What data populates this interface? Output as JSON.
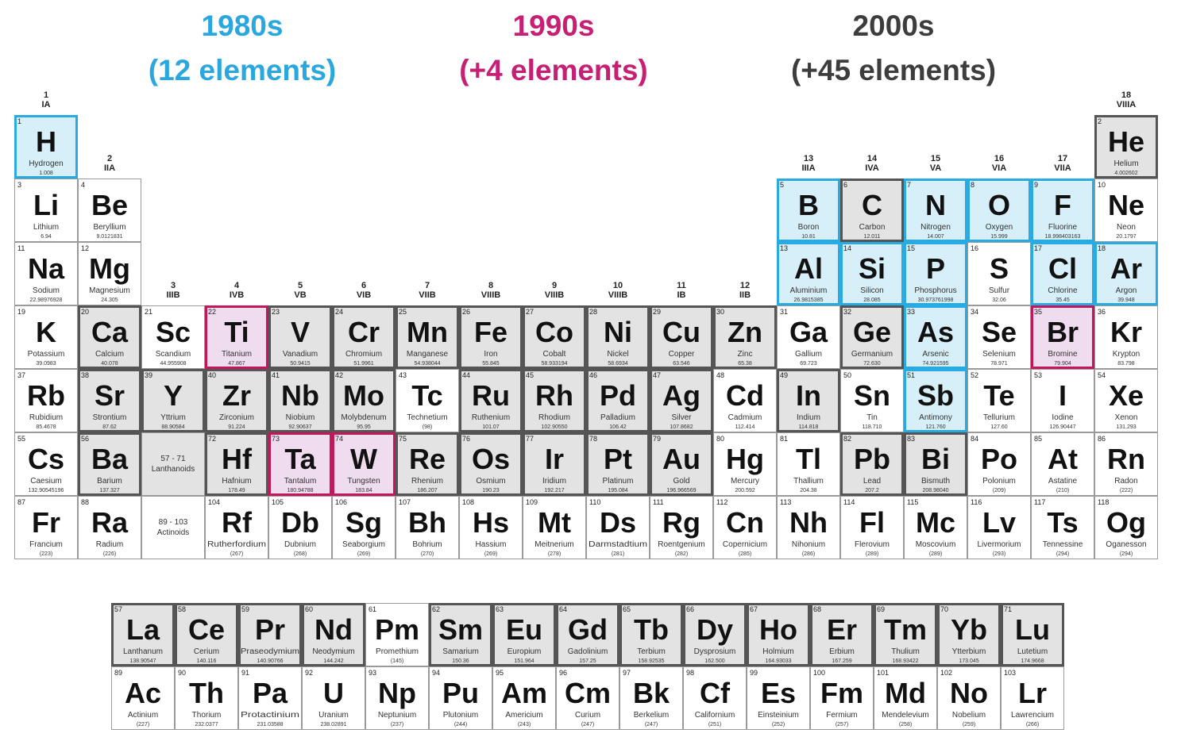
{
  "eras": [
    {
      "title": "1980s",
      "count": "(12 elements)",
      "color": "#29abe2",
      "fill": "#d6eff9",
      "text": "#2aa7df"
    },
    {
      "title": "1990s",
      "count": "(+4 elements)",
      "color": "#c2185b",
      "fill": "#efdcef",
      "text": "#c71f74"
    },
    {
      "title": "2000s",
      "count": "(+45 elements)",
      "color": "#555555",
      "fill": "#e3e3e3",
      "text": "#3d3d3d"
    }
  ],
  "groups": [
    {
      "number": 1,
      "roman": "IA"
    },
    {
      "number": 2,
      "roman": "IIA"
    },
    {
      "number": 3,
      "roman": "IIIB"
    },
    {
      "number": 4,
      "roman": "IVB"
    },
    {
      "number": 5,
      "roman": "VB"
    },
    {
      "number": 6,
      "roman": "VIB"
    },
    {
      "number": 7,
      "roman": "VIIB"
    },
    {
      "number": 8,
      "roman": "VIIIB"
    },
    {
      "number": 9,
      "roman": "VIIIB"
    },
    {
      "number": 10,
      "roman": "VIIIB"
    },
    {
      "number": 11,
      "roman": "IB"
    },
    {
      "number": 12,
      "roman": "IIB"
    },
    {
      "number": 13,
      "roman": "IIIA"
    },
    {
      "number": 14,
      "roman": "IVA"
    },
    {
      "number": 15,
      "roman": "VA"
    },
    {
      "number": 16,
      "roman": "VIA"
    },
    {
      "number": 17,
      "roman": "VIIA"
    },
    {
      "number": 18,
      "roman": "VIIIA"
    }
  ],
  "placeholders": [
    {
      "range": "57 - 71",
      "label": "Lanthanoids",
      "era": 2
    },
    {
      "range": "89 - 103",
      "label": "Actinoids"
    }
  ],
  "elements": [
    {
      "z": 1,
      "sym": "H",
      "name": "Hydrogen",
      "mass": "1.008",
      "era": 0
    },
    {
      "z": 2,
      "sym": "He",
      "name": "Helium",
      "mass": "4.002602",
      "era": 2
    },
    {
      "z": 3,
      "sym": "Li",
      "name": "Lithium",
      "mass": "6.94"
    },
    {
      "z": 4,
      "sym": "Be",
      "name": "Beryllium",
      "mass": "9.0121831"
    },
    {
      "z": 5,
      "sym": "B",
      "name": "Boron",
      "mass": "10.81",
      "era": 0
    },
    {
      "z": 6,
      "sym": "C",
      "name": "Carbon",
      "mass": "12.011",
      "era": 2
    },
    {
      "z": 7,
      "sym": "N",
      "name": "Nitrogen",
      "mass": "14.007",
      "era": 0
    },
    {
      "z": 8,
      "sym": "O",
      "name": "Oxygen",
      "mass": "15.999",
      "era": 0
    },
    {
      "z": 9,
      "sym": "F",
      "name": "Fluorine",
      "mass": "18.998403163",
      "era": 0
    },
    {
      "z": 10,
      "sym": "Ne",
      "name": "Neon",
      "mass": "20.1797"
    },
    {
      "z": 11,
      "sym": "Na",
      "name": "Sodium",
      "mass": "22.98976928"
    },
    {
      "z": 12,
      "sym": "Mg",
      "name": "Magnesium",
      "mass": "24.305"
    },
    {
      "z": 13,
      "sym": "Al",
      "name": "Aluminium",
      "mass": "26.9815385",
      "era": 0
    },
    {
      "z": 14,
      "sym": "Si",
      "name": "Silicon",
      "mass": "28.085",
      "era": 0
    },
    {
      "z": 15,
      "sym": "P",
      "name": "Phosphorus",
      "mass": "30.973761998",
      "era": 0
    },
    {
      "z": 16,
      "sym": "S",
      "name": "Sulfur",
      "mass": "32.06"
    },
    {
      "z": 17,
      "sym": "Cl",
      "name": "Chlorine",
      "mass": "35.45",
      "era": 0
    },
    {
      "z": 18,
      "sym": "Ar",
      "name": "Argon",
      "mass": "39.948",
      "era": 0
    },
    {
      "z": 19,
      "sym": "K",
      "name": "Potassium",
      "mass": "39.0983"
    },
    {
      "z": 20,
      "sym": "Ca",
      "name": "Calcium",
      "mass": "40.078",
      "era": 2
    },
    {
      "z": 21,
      "sym": "Sc",
      "name": "Scandium",
      "mass": "44.955908"
    },
    {
      "z": 22,
      "sym": "Ti",
      "name": "Titanium",
      "mass": "47.867",
      "era": 1
    },
    {
      "z": 23,
      "sym": "V",
      "name": "Vanadium",
      "mass": "50.9415",
      "era": 2
    },
    {
      "z": 24,
      "sym": "Cr",
      "name": "Chromium",
      "mass": "51.9961",
      "era": 2
    },
    {
      "z": 25,
      "sym": "Mn",
      "name": "Manganese",
      "mass": "54.938044",
      "era": 2
    },
    {
      "z": 26,
      "sym": "Fe",
      "name": "Iron",
      "mass": "55.845",
      "era": 2
    },
    {
      "z": 27,
      "sym": "Co",
      "name": "Cobalt",
      "mass": "58.933194",
      "era": 2
    },
    {
      "z": 28,
      "sym": "Ni",
      "name": "Nickel",
      "mass": "58.6934",
      "era": 2
    },
    {
      "z": 29,
      "sym": "Cu",
      "name": "Copper",
      "mass": "63.546",
      "era": 2
    },
    {
      "z": 30,
      "sym": "Zn",
      "name": "Zinc",
      "mass": "65.38",
      "era": 2
    },
    {
      "z": 31,
      "sym": "Ga",
      "name": "Gallium",
      "mass": "69.723"
    },
    {
      "z": 32,
      "sym": "Ge",
      "name": "Germanium",
      "mass": "72.630",
      "era": 2
    },
    {
      "z": 33,
      "sym": "As",
      "name": "Arsenic",
      "mass": "74.921595",
      "era": 0
    },
    {
      "z": 34,
      "sym": "Se",
      "name": "Selenium",
      "mass": "78.971"
    },
    {
      "z": 35,
      "sym": "Br",
      "name": "Bromine",
      "mass": "79.904",
      "era": 1
    },
    {
      "z": 36,
      "sym": "Kr",
      "name": "Krypton",
      "mass": "83.798"
    },
    {
      "z": 37,
      "sym": "Rb",
      "name": "Rubidium",
      "mass": "85.4678"
    },
    {
      "z": 38,
      "sym": "Sr",
      "name": "Strontium",
      "mass": "87.62",
      "era": 2
    },
    {
      "z": 39,
      "sym": "Y",
      "name": "Yttrium",
      "mass": "88.90584",
      "era": 2
    },
    {
      "z": 40,
      "sym": "Zr",
      "name": "Zirconium",
      "mass": "91.224",
      "era": 2
    },
    {
      "z": 41,
      "sym": "Nb",
      "name": "Niobium",
      "mass": "92.90637",
      "era": 2
    },
    {
      "z": 42,
      "sym": "Mo",
      "name": "Molybdenum",
      "mass": "95.95",
      "era": 2
    },
    {
      "z": 43,
      "sym": "Tc",
      "name": "Technetium",
      "mass": "(98)"
    },
    {
      "z": 44,
      "sym": "Ru",
      "name": "Ruthenium",
      "mass": "101.07",
      "era": 2
    },
    {
      "z": 45,
      "sym": "Rh",
      "name": "Rhodium",
      "mass": "102.90550",
      "era": 2
    },
    {
      "z": 46,
      "sym": "Pd",
      "name": "Palladium",
      "mass": "106.42",
      "era": 2
    },
    {
      "z": 47,
      "sym": "Ag",
      "name": "Silver",
      "mass": "107.8682",
      "era": 2
    },
    {
      "z": 48,
      "sym": "Cd",
      "name": "Cadmium",
      "mass": "112.414"
    },
    {
      "z": 49,
      "sym": "In",
      "name": "Indium",
      "mass": "114.818",
      "era": 2
    },
    {
      "z": 50,
      "sym": "Sn",
      "name": "Tin",
      "mass": "118.710"
    },
    {
      "z": 51,
      "sym": "Sb",
      "name": "Antimony",
      "mass": "121.760",
      "era": 0
    },
    {
      "z": 52,
      "sym": "Te",
      "name": "Tellurium",
      "mass": "127.60"
    },
    {
      "z": 53,
      "sym": "I",
      "name": "Iodine",
      "mass": "126.90447"
    },
    {
      "z": 54,
      "sym": "Xe",
      "name": "Xenon",
      "mass": "131.293"
    },
    {
      "z": 55,
      "sym": "Cs",
      "name": "Caesium",
      "mass": "132.90545196"
    },
    {
      "z": 56,
      "sym": "Ba",
      "name": "Barium",
      "mass": "137.327",
      "era": 2
    },
    {
      "z": 57,
      "sym": "La",
      "name": "Lanthanum",
      "mass": "138.90547",
      "era": 2
    },
    {
      "z": 58,
      "sym": "Ce",
      "name": "Cerium",
      "mass": "140.116",
      "era": 2
    },
    {
      "z": 59,
      "sym": "Pr",
      "name": "Praseodymium",
      "mass": "140.90766",
      "era": 2
    },
    {
      "z": 60,
      "sym": "Nd",
      "name": "Neodymium",
      "mass": "144.242",
      "era": 2
    },
    {
      "z": 61,
      "sym": "Pm",
      "name": "Promethium",
      "mass": "(145)"
    },
    {
      "z": 62,
      "sym": "Sm",
      "name": "Samarium",
      "mass": "150.36",
      "era": 2
    },
    {
      "z": 63,
      "sym": "Eu",
      "name": "Europium",
      "mass": "151.964",
      "era": 2
    },
    {
      "z": 64,
      "sym": "Gd",
      "name": "Gadolinium",
      "mass": "157.25",
      "era": 2
    },
    {
      "z": 65,
      "sym": "Tb",
      "name": "Terbium",
      "mass": "158.92535",
      "era": 2
    },
    {
      "z": 66,
      "sym": "Dy",
      "name": "Dysprosium",
      "mass": "162.500",
      "era": 2
    },
    {
      "z": 67,
      "sym": "Ho",
      "name": "Holmium",
      "mass": "164.93033",
      "era": 2
    },
    {
      "z": 68,
      "sym": "Er",
      "name": "Erbium",
      "mass": "167.259",
      "era": 2
    },
    {
      "z": 69,
      "sym": "Tm",
      "name": "Thulium",
      "mass": "168.93422",
      "era": 2
    },
    {
      "z": 70,
      "sym": "Yb",
      "name": "Ytterbium",
      "mass": "173.045",
      "era": 2
    },
    {
      "z": 71,
      "sym": "Lu",
      "name": "Lutetium",
      "mass": "174.9668",
      "era": 2
    },
    {
      "z": 72,
      "sym": "Hf",
      "name": "Hafnium",
      "mass": "178.49",
      "era": 2
    },
    {
      "z": 73,
      "sym": "Ta",
      "name": "Tantalum",
      "mass": "180.94788",
      "era": 1
    },
    {
      "z": 74,
      "sym": "W",
      "name": "Tungsten",
      "mass": "183.84",
      "era": 1
    },
    {
      "z": 75,
      "sym": "Re",
      "name": "Rhenium",
      "mass": "186.207",
      "era": 2
    },
    {
      "z": 76,
      "sym": "Os",
      "name": "Osmium",
      "mass": "190.23",
      "era": 2
    },
    {
      "z": 77,
      "sym": "Ir",
      "name": "Iridium",
      "mass": "192.217",
      "era": 2
    },
    {
      "z": 78,
      "sym": "Pt",
      "name": "Platinum",
      "mass": "195.084",
      "era": 2
    },
    {
      "z": 79,
      "sym": "Au",
      "name": "Gold",
      "mass": "196.966569",
      "era": 2
    },
    {
      "z": 80,
      "sym": "Hg",
      "name": "Mercury",
      "mass": "200.592"
    },
    {
      "z": 81,
      "sym": "Tl",
      "name": "Thallium",
      "mass": "204.38"
    },
    {
      "z": 82,
      "sym": "Pb",
      "name": "Lead",
      "mass": "207.2",
      "era": 2
    },
    {
      "z": 83,
      "sym": "Bi",
      "name": "Bismuth",
      "mass": "208.98040",
      "era": 2
    },
    {
      "z": 84,
      "sym": "Po",
      "name": "Polonium",
      "mass": "(209)"
    },
    {
      "z": 85,
      "sym": "At",
      "name": "Astatine",
      "mass": "(210)"
    },
    {
      "z": 86,
      "sym": "Rn",
      "name": "Radon",
      "mass": "(222)"
    },
    {
      "z": 87,
      "sym": "Fr",
      "name": "Francium",
      "mass": "(223)"
    },
    {
      "z": 88,
      "sym": "Ra",
      "name": "Radium",
      "mass": "(226)"
    },
    {
      "z": 89,
      "sym": "Ac",
      "name": "Actinium",
      "mass": "(227)"
    },
    {
      "z": 90,
      "sym": "Th",
      "name": "Thorium",
      "mass": "232.0377"
    },
    {
      "z": 91,
      "sym": "Pa",
      "name": "Protactinium",
      "mass": "231.03588"
    },
    {
      "z": 92,
      "sym": "U",
      "name": "Uranium",
      "mass": "238.02891"
    },
    {
      "z": 93,
      "sym": "Np",
      "name": "Neptunium",
      "mass": "(237)"
    },
    {
      "z": 94,
      "sym": "Pu",
      "name": "Plutonium",
      "mass": "(244)"
    },
    {
      "z": 95,
      "sym": "Am",
      "name": "Americium",
      "mass": "(243)"
    },
    {
      "z": 96,
      "sym": "Cm",
      "name": "Curium",
      "mass": "(247)"
    },
    {
      "z": 97,
      "sym": "Bk",
      "name": "Berkelium",
      "mass": "(247)"
    },
    {
      "z": 98,
      "sym": "Cf",
      "name": "Californium",
      "mass": "(251)"
    },
    {
      "z": 99,
      "sym": "Es",
      "name": "Einsteinium",
      "mass": "(252)"
    },
    {
      "z": 100,
      "sym": "Fm",
      "name": "Fermium",
      "mass": "(257)"
    },
    {
      "z": 101,
      "sym": "Md",
      "name": "Mendelevium",
      "mass": "(258)"
    },
    {
      "z": 102,
      "sym": "No",
      "name": "Nobelium",
      "mass": "(259)"
    },
    {
      "z": 103,
      "sym": "Lr",
      "name": "Lawrencium",
      "mass": "(266)"
    },
    {
      "z": 104,
      "sym": "Rf",
      "name": "Rutherfordium",
      "mass": "(267)"
    },
    {
      "z": 105,
      "sym": "Db",
      "name": "Dubnium",
      "mass": "(268)"
    },
    {
      "z": 106,
      "sym": "Sg",
      "name": "Seaborgium",
      "mass": "(269)"
    },
    {
      "z": 107,
      "sym": "Bh",
      "name": "Bohrium",
      "mass": "(270)"
    },
    {
      "z": 108,
      "sym": "Hs",
      "name": "Hassium",
      "mass": "(269)"
    },
    {
      "z": 109,
      "sym": "Mt",
      "name": "Meitnerium",
      "mass": "(278)"
    },
    {
      "z": 110,
      "sym": "Ds",
      "name": "Darmstadtium",
      "mass": "(281)"
    },
    {
      "z": 111,
      "sym": "Rg",
      "name": "Roentgenium",
      "mass": "(282)"
    },
    {
      "z": 112,
      "sym": "Cn",
      "name": "Copernicium",
      "mass": "(285)"
    },
    {
      "z": 113,
      "sym": "Nh",
      "name": "Nihonium",
      "mass": "(286)"
    },
    {
      "z": 114,
      "sym": "Fl",
      "name": "Flerovium",
      "mass": "(289)"
    },
    {
      "z": 115,
      "sym": "Mc",
      "name": "Moscovium",
      "mass": "(289)"
    },
    {
      "z": 116,
      "sym": "Lv",
      "name": "Livermorium",
      "mass": "(293)"
    },
    {
      "z": 117,
      "sym": "Ts",
      "name": "Tennessine",
      "mass": "(294)"
    },
    {
      "z": 118,
      "sym": "Og",
      "name": "Oganesson",
      "mass": "(294)"
    }
  ]
}
